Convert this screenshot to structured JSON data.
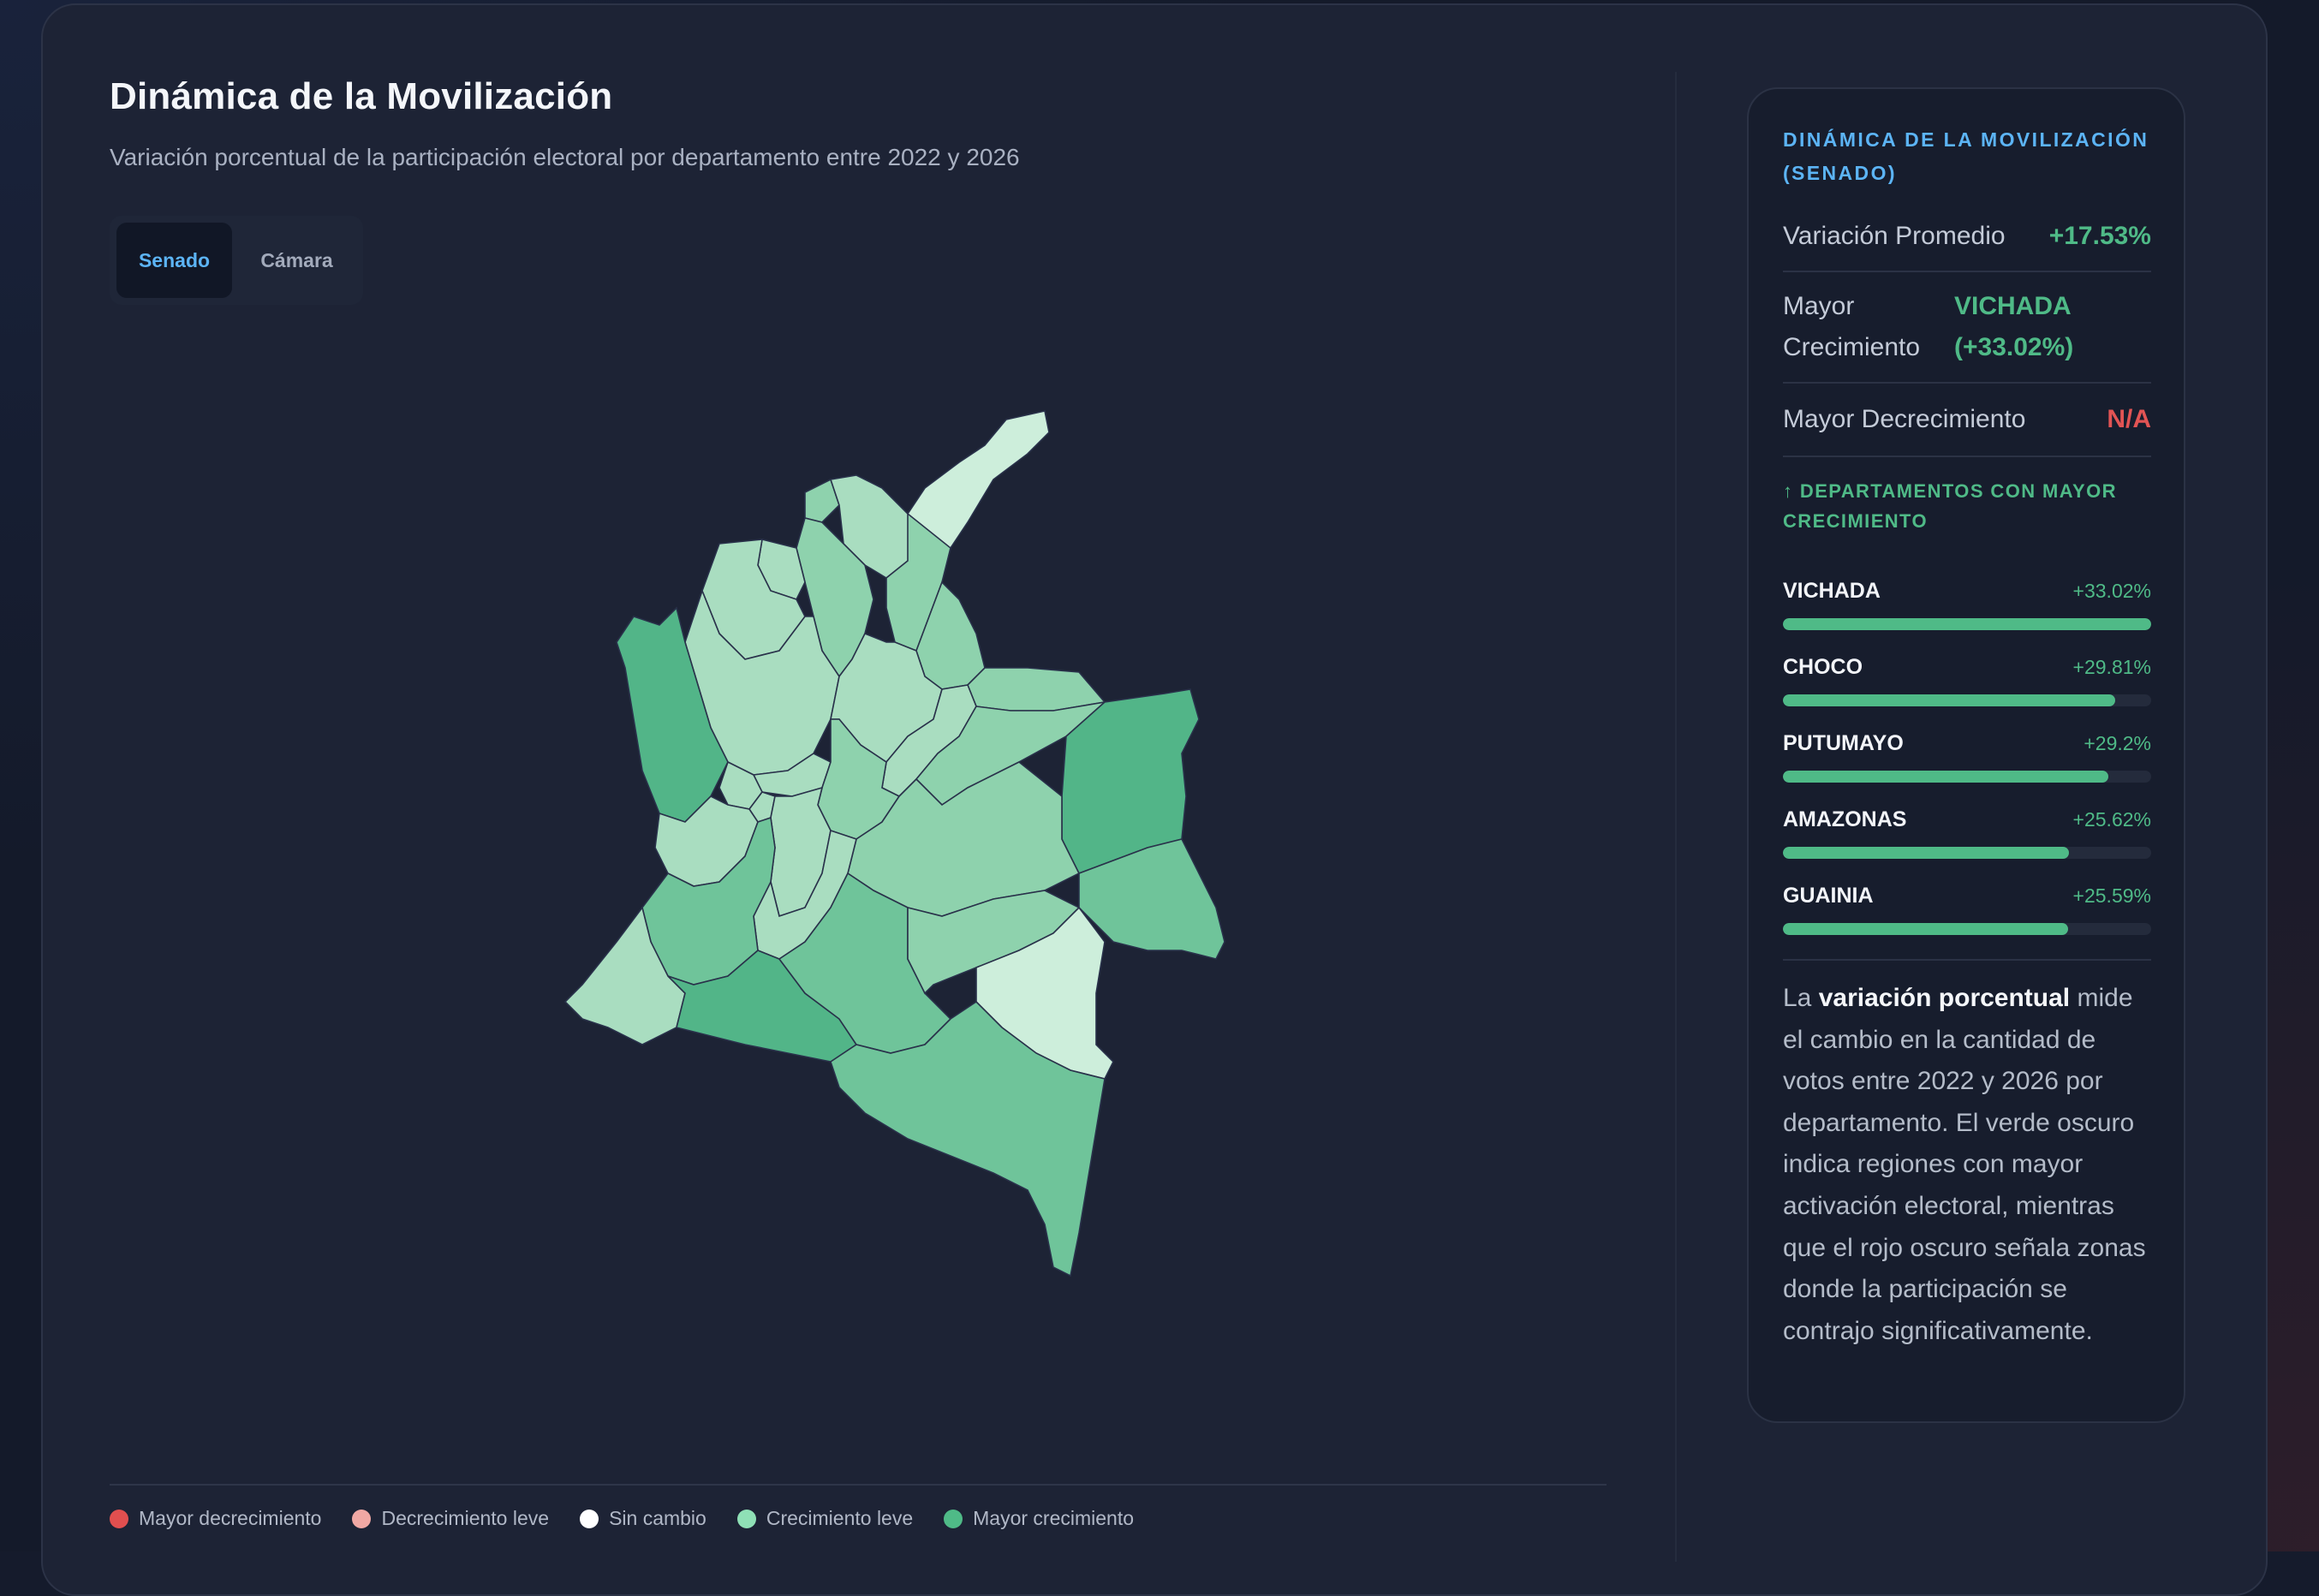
{
  "header": {
    "title": "Dinámica de la Movilización",
    "subtitle": "Variación porcentual de la participación electoral por departamento entre 2022 y 2026"
  },
  "tabs": [
    {
      "label": "Senado",
      "active": true
    },
    {
      "label": "Cámara",
      "active": false
    }
  ],
  "map": {
    "color_scale": {
      "mayor_crecimiento": "#52b588",
      "crecimiento_alto": "#6fc49a",
      "crecimiento_medio": "#8ed2ad",
      "crecimiento_leve": "#a9ddc0",
      "crecimiento_bajo": "#cdeedb"
    }
  },
  "legend": [
    {
      "label": "Mayor decrecimiento",
      "color": "#e14f4f"
    },
    {
      "label": "Decrecimiento leve",
      "color": "#f0a8a4"
    },
    {
      "label": "Sin cambio",
      "color": "#ffffff"
    },
    {
      "label": "Crecimiento leve",
      "color": "#8fe0b6"
    },
    {
      "label": "Mayor crecimiento",
      "color": "#4fba87"
    }
  ],
  "panel": {
    "title": "DINÁMICA DE LA MOVILIZACIÓN (SENADO)",
    "stats": {
      "avg_label": "Variación Promedio",
      "avg_value": "+17.53%",
      "max_label_1": "Mayor",
      "max_label_2": "Crecimiento",
      "max_value_1": "VICHADA",
      "max_value_2": "(+33.02%)",
      "min_label": "Mayor Decrecimiento",
      "min_value": "N/A"
    },
    "top_title": "↑ DEPARTAMENTOS CON MAYOR CRECIMIENTO",
    "top": [
      {
        "name": "VICHADA",
        "value": "+33.02%",
        "pct": 33.02
      },
      {
        "name": "CHOCO",
        "value": "+29.81%",
        "pct": 29.81
      },
      {
        "name": "PUTUMAYO",
        "value": "+29.2%",
        "pct": 29.2
      },
      {
        "name": "AMAZONAS",
        "value": "+25.62%",
        "pct": 25.62
      },
      {
        "name": "GUAINIA",
        "value": "+25.59%",
        "pct": 25.59
      }
    ],
    "description": {
      "pre": "La ",
      "bold": "variación porcentual",
      "post": " mide el cambio en la cantidad de votos entre 2022 y 2026 por departamento. El verde oscuro indica regiones con mayor activación electoral, mientras que el rojo oscuro señala zonas donde la participación se contrajo significativamente."
    }
  },
  "colors": {
    "accent_blue": "#5cb4f5",
    "accent_green": "#4fba87",
    "accent_red": "#e25454"
  }
}
